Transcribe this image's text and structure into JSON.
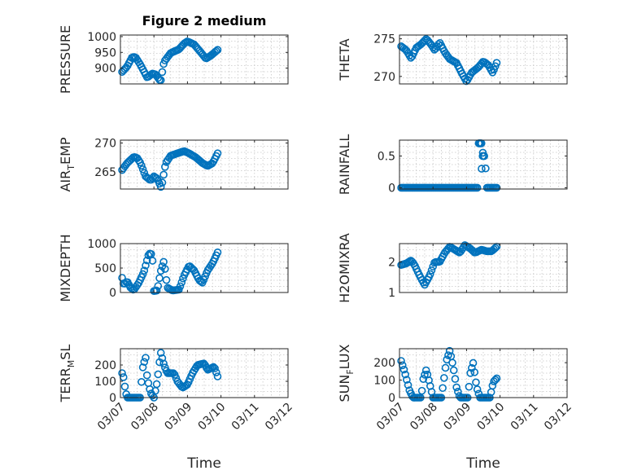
{
  "figure": {
    "title": "Figure 2 medium",
    "xlabel": "Time",
    "marker_color": "#0072BD",
    "xticks": [
      "03/07",
      "03/08",
      "03/09",
      "03/10",
      "03/11",
      "03/12"
    ]
  },
  "chart_data": [
    {
      "type": "scatter",
      "name": "pressure",
      "ylabel": "PRESSURE",
      "ylabel_parts": [
        "PRESSURE"
      ],
      "title": "Figure 2 medium",
      "xlim": [
        0,
        5
      ],
      "ylim": [
        850,
        1005
      ],
      "yticks": [
        900,
        950,
        1000
      ],
      "xticks": [
        "03/07",
        "03/08",
        "03/09",
        "03/10",
        "03/11",
        "03/12"
      ],
      "keys": [
        [
          0.05,
          888
        ],
        [
          0.2,
          905
        ],
        [
          0.35,
          935
        ],
        [
          0.45,
          935
        ],
        [
          0.6,
          910
        ],
        [
          0.8,
          870
        ],
        [
          0.95,
          883
        ],
        [
          1.05,
          880
        ],
        [
          1.2,
          858
        ],
        [
          1.3,
          920
        ],
        [
          1.5,
          948
        ],
        [
          1.75,
          960
        ],
        [
          1.9,
          978
        ],
        [
          2.0,
          985
        ],
        [
          2.2,
          975
        ],
        [
          2.4,
          950
        ],
        [
          2.55,
          930
        ],
        [
          2.7,
          940
        ],
        [
          2.9,
          958
        ]
      ]
    },
    {
      "type": "scatter",
      "name": "theta",
      "ylabel": "THETA",
      "ylabel_parts": [
        "THETA"
      ],
      "xlim": [
        0,
        5
      ],
      "ylim": [
        269,
        275.5
      ],
      "yticks": [
        270,
        275
      ],
      "xticks": [
        "03/07",
        "03/08",
        "03/09",
        "03/10",
        "03/11",
        "03/12"
      ],
      "keys": [
        [
          0.05,
          274
        ],
        [
          0.2,
          273.5
        ],
        [
          0.35,
          272.4
        ],
        [
          0.5,
          273.8
        ],
        [
          0.65,
          274.3
        ],
        [
          0.8,
          275
        ],
        [
          0.95,
          274.2
        ],
        [
          1.05,
          273.5
        ],
        [
          1.2,
          274.5
        ],
        [
          1.35,
          273.2
        ],
        [
          1.5,
          272.3
        ],
        [
          1.7,
          271.8
        ],
        [
          1.85,
          270.5
        ],
        [
          2.0,
          269.3
        ],
        [
          2.15,
          270.5
        ],
        [
          2.35,
          271.2
        ],
        [
          2.5,
          272
        ],
        [
          2.65,
          271.5
        ],
        [
          2.78,
          270.5
        ],
        [
          2.9,
          271.8
        ]
      ]
    },
    {
      "type": "scatter",
      "name": "air_temp",
      "ylabel": "AIR_TEMP",
      "ylabel_parts": [
        "AIR",
        "T",
        "EMP"
      ],
      "xlim": [
        0,
        5
      ],
      "ylim": [
        262,
        270.5
      ],
      "yticks": [
        265,
        270
      ],
      "xticks": [
        "03/07",
        "03/08",
        "03/09",
        "03/10",
        "03/11",
        "03/12"
      ],
      "keys": [
        [
          0.05,
          265.3
        ],
        [
          0.2,
          266.5
        ],
        [
          0.4,
          267.6
        ],
        [
          0.5,
          267.4
        ],
        [
          0.6,
          266.5
        ],
        [
          0.75,
          264.2
        ],
        [
          0.9,
          263.5
        ],
        [
          1.0,
          264.2
        ],
        [
          1.1,
          263.8
        ],
        [
          1.22,
          262.2
        ],
        [
          1.35,
          266.5
        ],
        [
          1.5,
          267.8
        ],
        [
          1.7,
          268.2
        ],
        [
          1.9,
          268.6
        ],
        [
          2.05,
          268.2
        ],
        [
          2.25,
          267.5
        ],
        [
          2.45,
          266.5
        ],
        [
          2.6,
          266
        ],
        [
          2.75,
          266.5
        ],
        [
          2.9,
          268.2
        ]
      ]
    },
    {
      "type": "scatter",
      "name": "rainfall",
      "ylabel": "RAINFALL",
      "ylabel_parts": [
        "RAINFALL"
      ],
      "xlim": [
        0,
        5
      ],
      "ylim": [
        -0.02,
        0.75
      ],
      "yticks": [
        0,
        0.5
      ],
      "xticks": [
        "03/07",
        "03/08",
        "03/09",
        "03/10",
        "03/11",
        "03/12"
      ],
      "keys": [
        [
          0.05,
          0
        ],
        [
          2.35,
          0
        ],
        [
          2.36,
          0.7
        ],
        [
          2.45,
          0.7
        ],
        [
          2.5,
          0.5
        ],
        [
          2.55,
          0.5
        ],
        [
          2.6,
          0
        ],
        [
          2.9,
          0
        ]
      ],
      "spikes": [
        [
          2.38,
          0.7
        ],
        [
          2.42,
          0.7
        ],
        [
          2.45,
          0.3
        ],
        [
          2.48,
          0.5
        ],
        [
          2.52,
          0.5
        ]
      ]
    },
    {
      "type": "scatter",
      "name": "mixdepth",
      "ylabel": "MIXDEPTH",
      "ylabel_parts": [
        "MIXDEPTH"
      ],
      "xlim": [
        0,
        5
      ],
      "ylim": [
        0,
        1000
      ],
      "yticks": [
        0,
        500,
        1000
      ],
      "xticks": [
        "03/07",
        "03/08",
        "03/09",
        "03/10",
        "03/11",
        "03/12"
      ],
      "keys": [
        [
          0.05,
          300
        ],
        [
          0.1,
          160
        ],
        [
          0.2,
          230
        ],
        [
          0.3,
          100
        ],
        [
          0.4,
          50
        ],
        [
          0.55,
          200
        ],
        [
          0.7,
          420
        ],
        [
          0.85,
          800
        ],
        [
          0.95,
          780
        ],
        [
          1.0,
          30
        ],
        [
          1.1,
          40
        ],
        [
          1.2,
          430
        ],
        [
          1.3,
          650
        ],
        [
          1.4,
          100
        ],
        [
          1.55,
          40
        ],
        [
          1.75,
          60
        ],
        [
          1.9,
          350
        ],
        [
          2.05,
          550
        ],
        [
          2.2,
          450
        ],
        [
          2.35,
          250
        ],
        [
          2.45,
          200
        ],
        [
          2.6,
          450
        ],
        [
          2.75,
          600
        ],
        [
          2.9,
          820
        ]
      ]
    },
    {
      "type": "scatter",
      "name": "h2omixra",
      "ylabel": "H2OMIXRA",
      "ylabel_parts": [
        "H2OMIXRA"
      ],
      "xlim": [
        0,
        5
      ],
      "ylim": [
        1,
        2.6
      ],
      "yticks": [
        1,
        2
      ],
      "xticks": [
        "03/07",
        "03/08",
        "03/09",
        "03/10",
        "03/11",
        "03/12"
      ],
      "keys": [
        [
          0.05,
          1.9
        ],
        [
          0.2,
          1.95
        ],
        [
          0.35,
          2.05
        ],
        [
          0.45,
          1.9
        ],
        [
          0.6,
          1.55
        ],
        [
          0.75,
          1.25
        ],
        [
          0.9,
          1.55
        ],
        [
          1.05,
          2.0
        ],
        [
          1.2,
          2.0
        ],
        [
          1.35,
          2.3
        ],
        [
          1.5,
          2.5
        ],
        [
          1.65,
          2.4
        ],
        [
          1.8,
          2.3
        ],
        [
          1.95,
          2.55
        ],
        [
          2.1,
          2.45
        ],
        [
          2.25,
          2.3
        ],
        [
          2.45,
          2.4
        ],
        [
          2.6,
          2.35
        ],
        [
          2.75,
          2.35
        ],
        [
          2.9,
          2.5
        ]
      ]
    },
    {
      "type": "scatter",
      "name": "terr_msl",
      "ylabel": "TERR_MSL",
      "ylabel_parts": [
        "TERR",
        "M",
        "SL"
      ],
      "xlim": [
        0,
        5
      ],
      "ylim": [
        0,
        300
      ],
      "yticks": [
        0,
        100,
        200
      ],
      "xticks": [
        "03/07",
        "03/08",
        "03/09",
        "03/10",
        "03/11",
        "03/12"
      ],
      "keys": [
        [
          0.05,
          150
        ],
        [
          0.1,
          120
        ],
        [
          0.15,
          40
        ],
        [
          0.2,
          0
        ],
        [
          0.6,
          0
        ],
        [
          0.65,
          170
        ],
        [
          0.75,
          250
        ],
        [
          0.8,
          120
        ],
        [
          0.9,
          30
        ],
        [
          1.0,
          0
        ],
        [
          1.1,
          100
        ],
        [
          1.2,
          280
        ],
        [
          1.3,
          200
        ],
        [
          1.4,
          150
        ],
        [
          1.6,
          150
        ],
        [
          1.7,
          100
        ],
        [
          1.85,
          60
        ],
        [
          2.0,
          80
        ],
        [
          2.15,
          150
        ],
        [
          2.3,
          200
        ],
        [
          2.5,
          210
        ],
        [
          2.6,
          170
        ],
        [
          2.8,
          190
        ],
        [
          2.9,
          130
        ]
      ]
    },
    {
      "type": "scatter",
      "name": "sun_flux",
      "ylabel": "SUN_FLUX",
      "ylabel_parts": [
        "SUN",
        "F",
        "LUX"
      ],
      "xlim": [
        0,
        5
      ],
      "ylim": [
        0,
        280
      ],
      "yticks": [
        0,
        100,
        200
      ],
      "xticks": [
        "03/07",
        "03/08",
        "03/09",
        "03/10",
        "03/11",
        "03/12"
      ],
      "keys": [
        [
          0.05,
          210
        ],
        [
          0.15,
          150
        ],
        [
          0.3,
          40
        ],
        [
          0.4,
          0
        ],
        [
          0.65,
          0
        ],
        [
          0.7,
          100
        ],
        [
          0.8,
          160
        ],
        [
          0.9,
          80
        ],
        [
          1.0,
          0
        ],
        [
          1.25,
          0
        ],
        [
          1.3,
          70
        ],
        [
          1.4,
          210
        ],
        [
          1.5,
          270
        ],
        [
          1.6,
          180
        ],
        [
          1.7,
          60
        ],
        [
          1.8,
          0
        ],
        [
          2.05,
          0
        ],
        [
          2.1,
          130
        ],
        [
          2.2,
          200
        ],
        [
          2.3,
          60
        ],
        [
          2.4,
          0
        ],
        [
          2.7,
          0
        ],
        [
          2.8,
          90
        ],
        [
          2.9,
          110
        ]
      ]
    }
  ]
}
